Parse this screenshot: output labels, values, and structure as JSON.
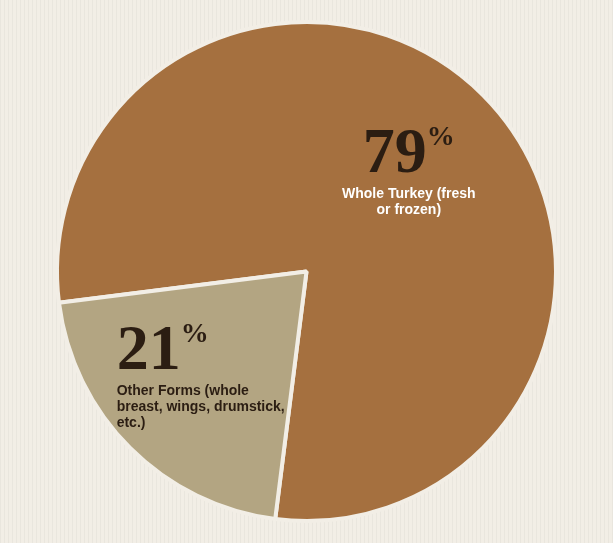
{
  "chart_data": {
    "type": "pie",
    "categories": [
      "Whole Turkey (fresh or frozen)",
      "Other Forms (whole breast, wings, drumstick, etc.)"
    ],
    "values": [
      79,
      21
    ],
    "value_labels": [
      "79%",
      "21%"
    ],
    "colors": [
      "#a5703f",
      "#b3a582"
    ],
    "data_labels": true
  }
}
